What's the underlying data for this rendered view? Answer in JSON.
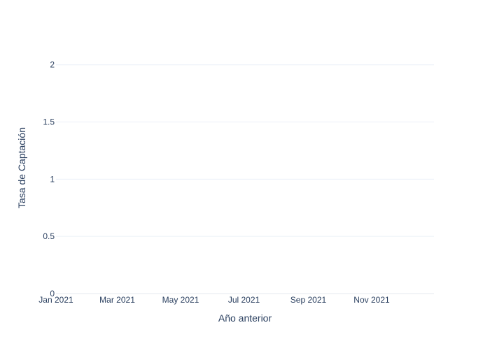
{
  "chart_data": {
    "type": "line",
    "title": "",
    "xlabel": "Año anterior",
    "ylabel": "Tasa de Captación",
    "x_type": "date",
    "xlim": [
      "2021-01-01",
      "2021-12-31"
    ],
    "ylim": [
      0,
      2.2
    ],
    "x_ticks": [
      {
        "value": "2021-01-01",
        "label": "Jan 2021"
      },
      {
        "value": "2021-03-01",
        "label": "Mar 2021"
      },
      {
        "value": "2021-05-01",
        "label": "May 2021"
      },
      {
        "value": "2021-07-01",
        "label": "Jul 2021"
      },
      {
        "value": "2021-09-01",
        "label": "Sep 2021"
      },
      {
        "value": "2021-11-01",
        "label": "Nov 2021"
      }
    ],
    "y_ticks": [
      {
        "value": 0,
        "label": "0"
      },
      {
        "value": 0.5,
        "label": "0.5"
      },
      {
        "value": 1,
        "label": "1"
      },
      {
        "value": 1.5,
        "label": "1.5"
      },
      {
        "value": 2,
        "label": "2"
      }
    ],
    "grid": true,
    "series": [],
    "colors": {
      "grid": "#ebf0f8",
      "axis_line": "#e6e9ef",
      "text": "#2a3f5f",
      "tick_text": "#444444",
      "background": "#ffffff"
    }
  }
}
